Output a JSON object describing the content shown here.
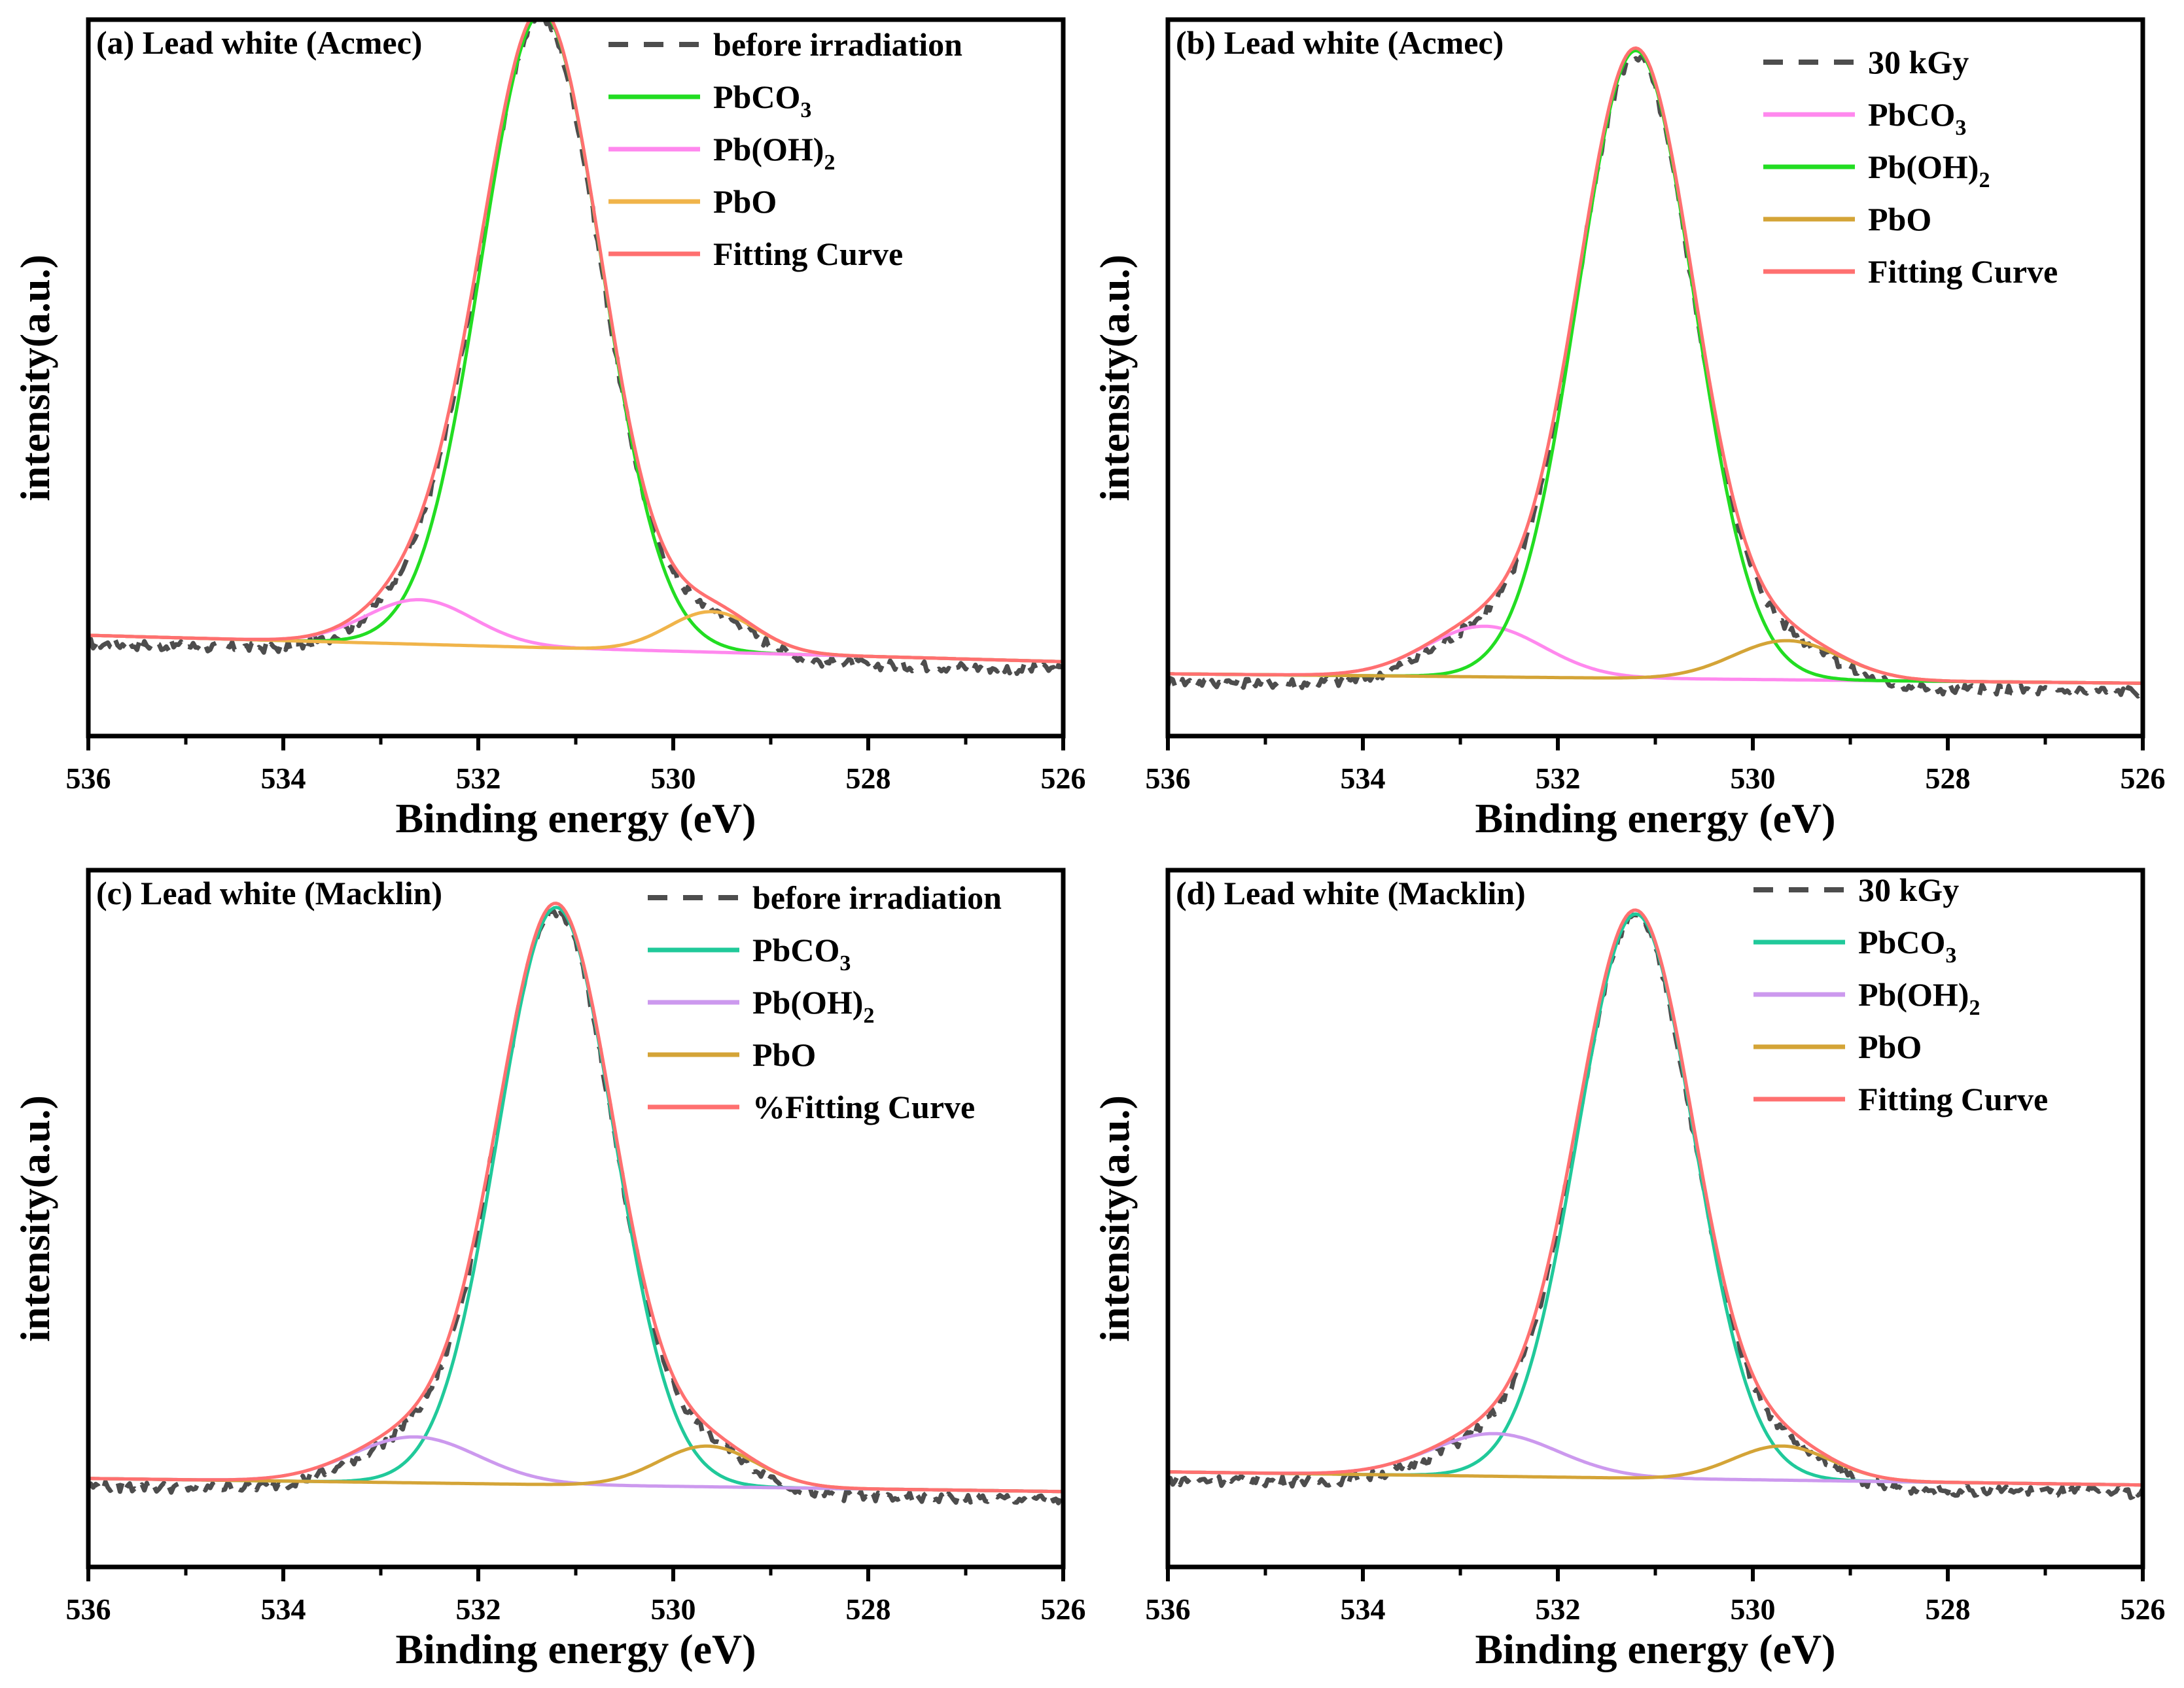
{
  "chart_data": [
    {
      "type": "line",
      "title": "(a) Lead white (Acmec)",
      "xlabel": "Binding energy (eV)",
      "ylabel": "intensity(a.u.)",
      "xlim": [
        536,
        526
      ],
      "xticks": [
        536,
        534,
        532,
        530,
        528,
        526
      ],
      "ylim": [
        0,
        100
      ],
      "legend_placement": "top-right",
      "series": [
        {
          "name": "before irradiation",
          "label_main": "before irradiation",
          "label_sub": "",
          "role": "measured",
          "style": "dashed",
          "color": "#4d4d4d"
        },
        {
          "name": "PbCO3",
          "label_main": "PbCO",
          "label_sub": "3",
          "role": "component",
          "style": "solid",
          "color": "#22dd22",
          "center": 531.35,
          "height": 94,
          "sigma": 0.62
        },
        {
          "name": "Pb(OH)2",
          "label_main": "Pb(OH)",
          "label_sub": "2",
          "role": "component",
          "style": "solid",
          "color": "#ff88ee",
          "center": 532.6,
          "height": 6.6,
          "sigma": 0.55
        },
        {
          "name": "PbO",
          "label_main": "PbO",
          "label_sub": "",
          "role": "component",
          "style": "solid",
          "color": "#f0b44a",
          "center": 529.6,
          "height": 6,
          "sigma": 0.45
        },
        {
          "name": "Fitting Curve",
          "label_main": "Fitting Curve",
          "label_sub": "",
          "role": "fit",
          "style": "solid",
          "color": "#ff7070"
        }
      ],
      "baseline": {
        "left": 12.5,
        "right": 8.6
      }
    },
    {
      "type": "line",
      "title": "(b) Lead white (Acmec)",
      "xlabel": "Binding energy (eV)",
      "ylabel": "intensity(a.u.)",
      "xlim": [
        536,
        526
      ],
      "xticks": [
        536,
        534,
        532,
        530,
        528,
        526
      ],
      "ylim": [
        0,
        100
      ],
      "legend_placement": "top-right",
      "series": [
        {
          "name": "30 kGy",
          "label_main": "30 kGy",
          "label_sub": "",
          "role": "measured",
          "style": "dashed",
          "color": "#4d4d4d"
        },
        {
          "name": "PbCO3",
          "label_main": "PbCO",
          "label_sub": "3",
          "role": "component",
          "style": "solid",
          "color": "#ff88ee",
          "center": 532.75,
          "height": 7.5,
          "sigma": 0.6
        },
        {
          "name": "Pb(OH)2",
          "label_main": "Pb(OH)",
          "label_sub": "2",
          "role": "component",
          "style": "solid",
          "color": "#22dd22",
          "center": 531.2,
          "height": 93,
          "sigma": 0.6
        },
        {
          "name": "PbO",
          "label_main": "PbO",
          "label_sub": "",
          "role": "component",
          "style": "solid",
          "color": "#d4a437",
          "center": 529.65,
          "height": 5.8,
          "sigma": 0.55
        },
        {
          "name": "Fitting Curve",
          "label_main": "Fitting Curve",
          "label_sub": "",
          "role": "fit",
          "style": "solid",
          "color": "#ff7070"
        }
      ],
      "baseline": {
        "left": 6.8,
        "right": 5.4
      }
    },
    {
      "type": "line",
      "title": "(c) Lead white (Macklin)",
      "xlabel": "Binding energy (eV)",
      "ylabel": "intensity(a.u.)",
      "xlim": [
        536,
        526
      ],
      "xticks": [
        536,
        534,
        532,
        530,
        528,
        526
      ],
      "ylim": [
        0,
        100
      ],
      "legend_placement": "top-right",
      "series": [
        {
          "name": "before irradiation",
          "label_main": "before irradiation",
          "label_sub": "",
          "role": "measured",
          "style": "dashed",
          "color": "#4d4d4d"
        },
        {
          "name": "PbCO3",
          "label_main": "PbCO",
          "label_sub": "3",
          "role": "component",
          "style": "solid",
          "color": "#20c99a",
          "center": 531.2,
          "height": 88,
          "sigma": 0.6
        },
        {
          "name": "Pb(OH)2",
          "label_main": "Pb(OH)",
          "label_sub": "2",
          "role": "component",
          "style": "solid",
          "color": "#cc99ee",
          "center": 532.65,
          "height": 7,
          "sigma": 0.65
        },
        {
          "name": "PbO",
          "label_main": "PbO",
          "label_sub": "",
          "role": "component",
          "style": "solid",
          "color": "#d4a437",
          "center": 529.65,
          "height": 6.2,
          "sigma": 0.5
        },
        {
          "name": "Fitting Curve",
          "label_main": "%Fitting Curve",
          "label_sub": "",
          "role": "fit",
          "style": "solid",
          "color": "#ff7070"
        }
      ],
      "baseline": {
        "left": 11,
        "right": 9
      }
    },
    {
      "type": "line",
      "title": "(d) Lead white (Macklin)",
      "xlabel": "Binding energy (eV)",
      "ylabel": "intensity(a.u.)",
      "xlim": [
        536,
        526
      ],
      "xticks": [
        536,
        534,
        532,
        530,
        528,
        526
      ],
      "ylim": [
        0,
        100
      ],
      "legend_placement": "top-right",
      "series": [
        {
          "name": "30 kGy",
          "label_main": "30 kGy",
          "label_sub": "",
          "role": "measured",
          "style": "dashed",
          "color": "#4d4d4d"
        },
        {
          "name": "PbCO3",
          "label_main": "PbCO",
          "label_sub": "3",
          "role": "component",
          "style": "solid",
          "color": "#20c99a",
          "center": 531.2,
          "height": 86,
          "sigma": 0.6
        },
        {
          "name": "Pb(OH)2",
          "label_main": "Pb(OH)",
          "label_sub": "2",
          "role": "component",
          "style": "solid",
          "color": "#cc99ee",
          "center": 532.65,
          "height": 6.5,
          "sigma": 0.65
        },
        {
          "name": "PbO",
          "label_main": "PbO",
          "label_sub": "",
          "role": "component",
          "style": "solid",
          "color": "#d4a437",
          "center": 529.7,
          "height": 5.2,
          "sigma": 0.5
        },
        {
          "name": "Fitting Curve",
          "label_main": "Fitting Curve",
          "label_sub": "",
          "role": "fit",
          "style": "solid",
          "color": "#ff7070"
        }
      ],
      "baseline": {
        "left": 12,
        "right": 10
      }
    }
  ]
}
